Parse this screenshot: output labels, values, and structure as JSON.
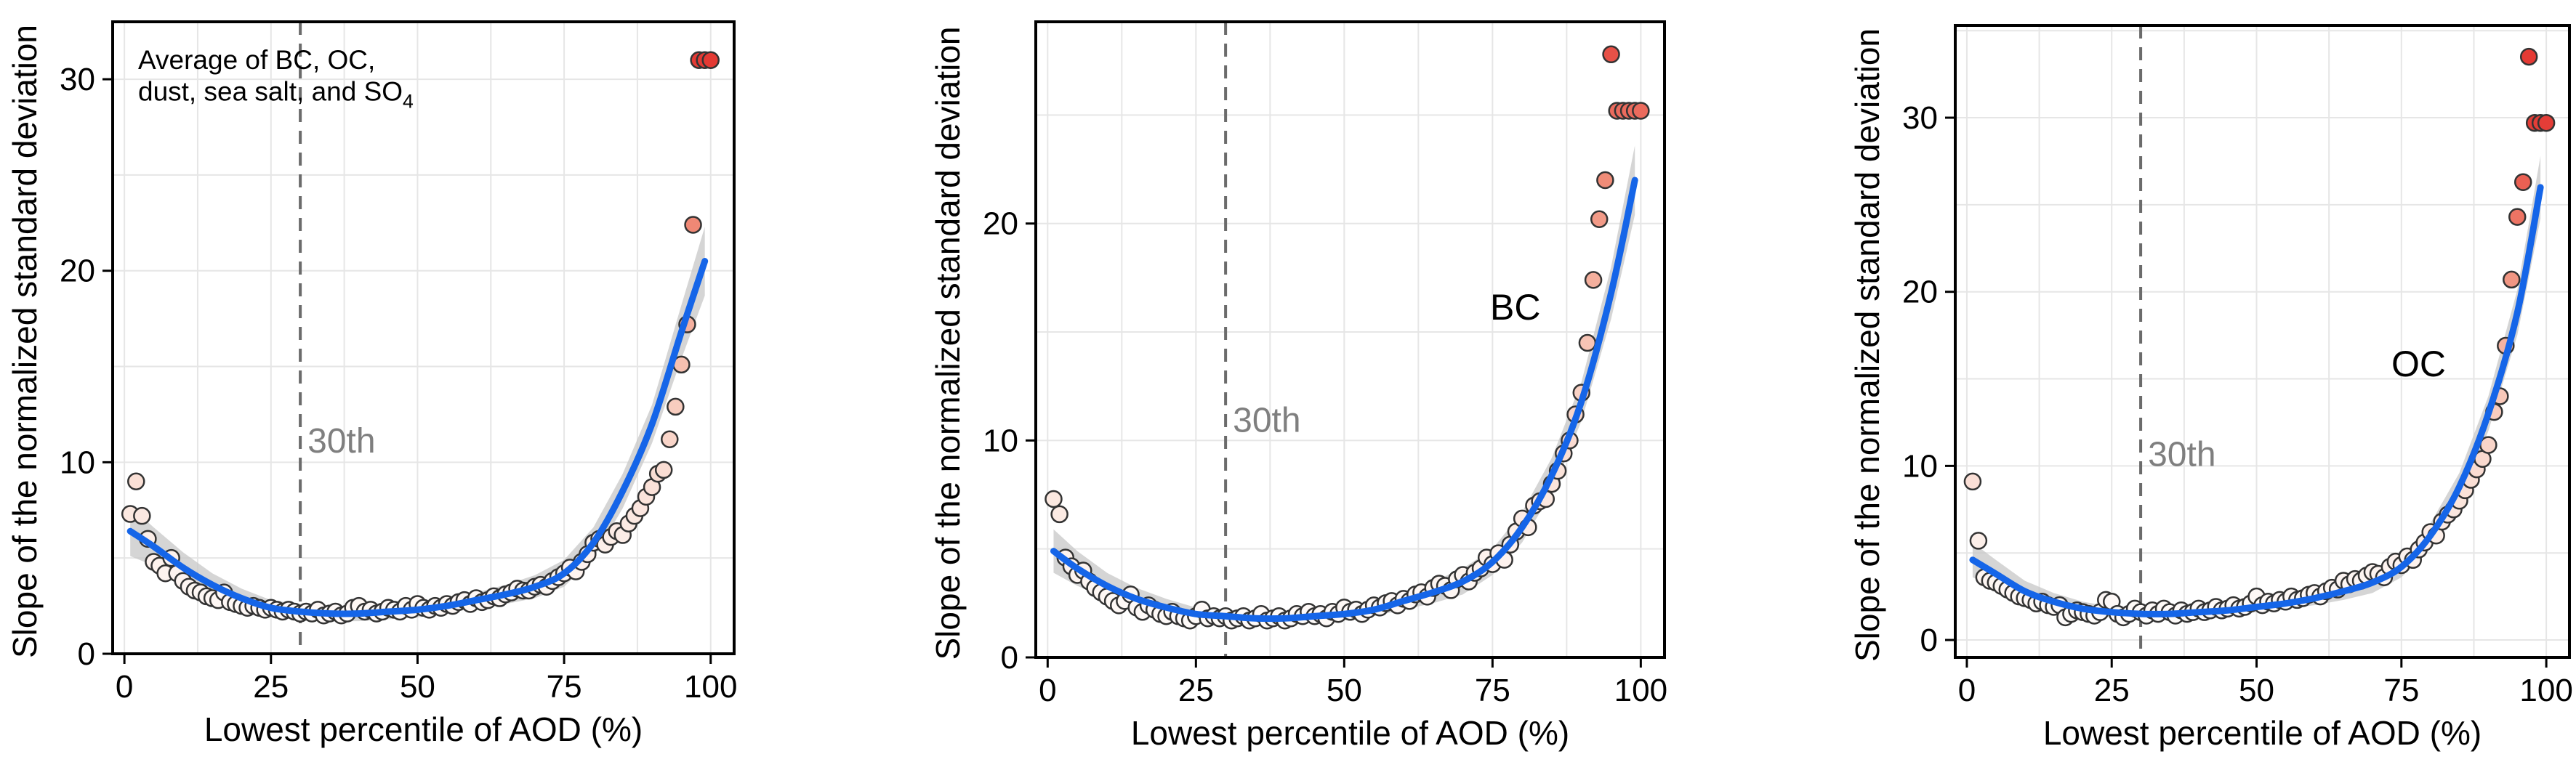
{
  "chart_data": [
    {
      "type": "scatter",
      "panel": "combined",
      "title": "",
      "xlabel": "Lowest percentile of AOD (%)",
      "ylabel": "Slope of the normalized standard deviation",
      "xlim": [
        -2,
        104
      ],
      "ylim": [
        0,
        33
      ],
      "xticks": [
        0,
        25,
        50,
        75,
        100
      ],
      "yticks": [
        0,
        10,
        20,
        30
      ],
      "grid": true,
      "annotation": {
        "lines": [
          "Average of BC, OC,",
          "dust, sea salt, and SO"
        ],
        "subscript": "4"
      },
      "reference": {
        "x": 30,
        "label": "30th"
      },
      "fit": {
        "x": [
          1,
          5,
          10,
          15,
          20,
          25,
          30,
          35,
          40,
          45,
          50,
          55,
          60,
          65,
          70,
          75,
          80,
          85,
          90,
          95,
          99
        ],
        "y": [
          6.4,
          5.6,
          4.5,
          3.6,
          2.9,
          2.4,
          2.2,
          2.1,
          2.1,
          2.2,
          2.3,
          2.5,
          2.8,
          3.1,
          3.5,
          4.2,
          5.8,
          8.5,
          12.0,
          16.8,
          20.5
        ],
        "ci_halfwidth": [
          1.3,
          1.0,
          0.8,
          0.6,
          0.5,
          0.4,
          0.4,
          0.4,
          0.4,
          0.4,
          0.4,
          0.4,
          0.4,
          0.5,
          0.6,
          0.7,
          0.8,
          0.9,
          1.0,
          1.4,
          1.8
        ]
      },
      "x": [
        1,
        2,
        3,
        4,
        5,
        6,
        7,
        8,
        9,
        10,
        11,
        12,
        13,
        14,
        15,
        16,
        17,
        18,
        19,
        20,
        21,
        22,
        23,
        24,
        25,
        26,
        27,
        28,
        29,
        30,
        31,
        32,
        33,
        34,
        35,
        36,
        37,
        38,
        39,
        40,
        41,
        42,
        43,
        44,
        45,
        46,
        47,
        48,
        49,
        50,
        51,
        52,
        53,
        54,
        55,
        56,
        57,
        58,
        59,
        60,
        61,
        62,
        63,
        64,
        65,
        66,
        67,
        68,
        69,
        70,
        71,
        72,
        73,
        74,
        75,
        76,
        77,
        78,
        79,
        80,
        81,
        82,
        83,
        84,
        85,
        86,
        87,
        88,
        89,
        90,
        91,
        92,
        93,
        94,
        95,
        96,
        97,
        98,
        99,
        100
      ],
      "y": [
        7.3,
        9.0,
        7.2,
        6.0,
        4.8,
        4.6,
        4.2,
        5.0,
        4.2,
        3.8,
        3.5,
        3.3,
        3.2,
        3.0,
        2.9,
        2.8,
        3.2,
        2.7,
        2.6,
        2.5,
        2.4,
        2.5,
        2.4,
        2.3,
        2.4,
        2.3,
        2.2,
        2.3,
        2.2,
        2.1,
        2.2,
        2.1,
        2.3,
        2.0,
        2.1,
        2.2,
        2.0,
        2.1,
        2.4,
        2.5,
        2.2,
        2.3,
        2.1,
        2.2,
        2.4,
        2.3,
        2.2,
        2.5,
        2.3,
        2.6,
        2.4,
        2.3,
        2.5,
        2.4,
        2.6,
        2.5,
        2.7,
        2.8,
        2.6,
        2.9,
        2.7,
        2.8,
        3.0,
        2.9,
        3.1,
        3.2,
        3.4,
        3.3,
        3.3,
        3.5,
        3.6,
        3.5,
        3.8,
        4.0,
        4.2,
        4.5,
        4.3,
        4.8,
        5.2,
        5.8,
        6.0,
        5.7,
        6.1,
        6.4,
        6.2,
        6.8,
        7.2,
        7.6,
        8.2,
        8.7,
        9.4,
        9.6,
        11.2,
        12.9,
        15.1,
        17.2,
        22.4,
        31.0,
        31.0,
        31.0
      ]
    },
    {
      "type": "scatter",
      "panel": "BC",
      "title": "",
      "xlabel": "Lowest percentile of AOD (%)",
      "ylabel": "Slope of the normalized standard deviation",
      "xlim": [
        -2,
        104
      ],
      "ylim": [
        0,
        29.3
      ],
      "xticks": [
        0,
        25,
        50,
        75,
        100
      ],
      "yticks": [
        0,
        10,
        20
      ],
      "grid": true,
      "annotation": {
        "lines": [
          "BC"
        ],
        "subscript": ""
      },
      "reference": {
        "x": 30,
        "label": "30th"
      },
      "fit": {
        "x": [
          1,
          5,
          10,
          15,
          20,
          25,
          30,
          35,
          40,
          45,
          50,
          55,
          60,
          65,
          70,
          75,
          80,
          85,
          90,
          95,
          99
        ],
        "y": [
          4.9,
          4.1,
          3.3,
          2.7,
          2.3,
          2.0,
          1.9,
          1.8,
          1.8,
          1.9,
          2.0,
          2.2,
          2.6,
          3.0,
          3.5,
          4.4,
          6.0,
          8.4,
          11.8,
          16.8,
          22.0
        ],
        "ci_halfwidth": [
          1.0,
          0.8,
          0.6,
          0.5,
          0.4,
          0.3,
          0.3,
          0.3,
          0.3,
          0.3,
          0.3,
          0.3,
          0.4,
          0.5,
          0.6,
          0.6,
          0.7,
          0.8,
          0.9,
          1.2,
          1.6
        ]
      },
      "x": [
        1,
        2,
        3,
        4,
        5,
        6,
        7,
        8,
        9,
        10,
        11,
        12,
        13,
        14,
        15,
        16,
        17,
        18,
        19,
        20,
        21,
        22,
        23,
        24,
        25,
        26,
        27,
        28,
        29,
        30,
        31,
        32,
        33,
        34,
        35,
        36,
        37,
        38,
        39,
        40,
        41,
        42,
        43,
        44,
        45,
        46,
        47,
        48,
        49,
        50,
        51,
        52,
        53,
        54,
        55,
        56,
        57,
        58,
        59,
        60,
        61,
        62,
        63,
        64,
        65,
        66,
        67,
        68,
        69,
        70,
        71,
        72,
        73,
        74,
        75,
        76,
        77,
        78,
        79,
        80,
        81,
        82,
        83,
        84,
        85,
        86,
        87,
        88,
        89,
        90,
        91,
        92,
        93,
        94,
        95,
        96,
        97,
        98,
        99,
        100
      ],
      "y": [
        7.3,
        6.6,
        4.6,
        4.2,
        3.8,
        4.0,
        3.5,
        3.2,
        3.0,
        2.8,
        2.6,
        2.4,
        2.6,
        2.9,
        2.3,
        2.1,
        2.4,
        2.2,
        2.0,
        1.9,
        2.1,
        1.9,
        1.8,
        1.7,
        1.9,
        2.2,
        1.8,
        1.9,
        1.8,
        1.9,
        1.7,
        1.8,
        1.9,
        1.7,
        1.8,
        2.0,
        1.7,
        1.8,
        1.9,
        1.7,
        1.8,
        2.0,
        1.9,
        2.1,
        1.9,
        2.0,
        1.8,
        2.1,
        2.0,
        2.3,
        2.1,
        2.2,
        2.0,
        2.2,
        2.4,
        2.3,
        2.5,
        2.6,
        2.4,
        2.7,
        2.6,
        2.9,
        3.0,
        2.8,
        3.2,
        3.4,
        3.3,
        3.1,
        3.6,
        3.8,
        3.5,
        3.9,
        4.1,
        4.6,
        4.3,
        4.8,
        4.5,
        5.2,
        5.8,
        6.4,
        6.0,
        7.0,
        7.2,
        7.3,
        8.0,
        8.6,
        9.4,
        10.0,
        11.2,
        12.2,
        14.5,
        17.4,
        20.2,
        22.0,
        27.8,
        25.2,
        25.2,
        25.2,
        25.2,
        25.2
      ]
    },
    {
      "type": "scatter",
      "panel": "OC",
      "title": "",
      "xlabel": "Lowest percentile of AOD (%)",
      "ylabel": "Slope of the normalized standard deviation",
      "xlim": [
        -2,
        104
      ],
      "ylim": [
        -1,
        35.3
      ],
      "xticks": [
        0,
        25,
        50,
        75,
        100
      ],
      "yticks": [
        0,
        10,
        20,
        30
      ],
      "grid": true,
      "annotation": {
        "lines": [
          "OC"
        ],
        "subscript": ""
      },
      "reference": {
        "x": 30,
        "label": "30th"
      },
      "fit": {
        "x": [
          1,
          5,
          10,
          15,
          20,
          25,
          30,
          35,
          40,
          45,
          50,
          55,
          60,
          65,
          70,
          75,
          80,
          85,
          90,
          95,
          99
        ],
        "y": [
          4.6,
          3.8,
          2.8,
          2.2,
          1.8,
          1.6,
          1.5,
          1.5,
          1.6,
          1.7,
          1.9,
          2.1,
          2.4,
          2.8,
          3.3,
          4.2,
          6.0,
          8.8,
          13.0,
          18.8,
          26.0
        ],
        "ci_halfwidth": [
          1.0,
          0.8,
          0.6,
          0.5,
          0.4,
          0.3,
          0.3,
          0.3,
          0.3,
          0.3,
          0.3,
          0.3,
          0.4,
          0.5,
          0.6,
          0.6,
          0.7,
          0.8,
          1.0,
          1.3,
          1.8
        ]
      },
      "x": [
        1,
        2,
        3,
        4,
        5,
        6,
        7,
        8,
        9,
        10,
        11,
        12,
        13,
        14,
        15,
        16,
        17,
        18,
        19,
        20,
        21,
        22,
        23,
        24,
        25,
        26,
        27,
        28,
        29,
        30,
        31,
        32,
        33,
        34,
        35,
        36,
        37,
        38,
        39,
        40,
        41,
        42,
        43,
        44,
        45,
        46,
        47,
        48,
        49,
        50,
        51,
        52,
        53,
        54,
        55,
        56,
        57,
        58,
        59,
        60,
        61,
        62,
        63,
        64,
        65,
        66,
        67,
        68,
        69,
        70,
        71,
        72,
        73,
        74,
        75,
        76,
        77,
        78,
        79,
        80,
        81,
        82,
        83,
        84,
        85,
        86,
        87,
        88,
        89,
        90,
        91,
        92,
        93,
        94,
        95,
        96,
        97,
        98,
        99,
        100
      ],
      "y": [
        9.1,
        5.7,
        3.6,
        3.4,
        3.3,
        3.1,
        2.9,
        2.7,
        2.5,
        2.4,
        2.3,
        2.1,
        2.2,
        2.0,
        1.9,
        2.0,
        1.3,
        1.5,
        1.7,
        1.6,
        1.5,
        1.4,
        1.6,
        2.3,
        2.2,
        1.5,
        1.3,
        1.5,
        1.8,
        1.6,
        1.4,
        1.7,
        1.5,
        1.8,
        1.6,
        1.4,
        1.7,
        1.5,
        1.6,
        1.8,
        1.6,
        1.7,
        1.9,
        1.7,
        1.8,
        2.0,
        1.8,
        1.9,
        2.1,
        2.5,
        2.0,
        2.2,
        2.1,
        2.3,
        2.2,
        2.5,
        2.3,
        2.4,
        2.6,
        2.7,
        2.5,
        2.8,
        3.0,
        2.9,
        3.4,
        3.2,
        3.5,
        3.4,
        3.7,
        3.9,
        3.8,
        3.6,
        4.2,
        4.5,
        4.3,
        4.8,
        4.6,
        5.2,
        5.6,
        6.2,
        6.0,
        6.8,
        7.2,
        7.5,
        8.0,
        8.6,
        9.2,
        9.8,
        10.4,
        11.2,
        13.1,
        14.0,
        16.9,
        20.7,
        24.3,
        26.3,
        33.5,
        29.7,
        29.7,
        29.7
      ]
    }
  ]
}
